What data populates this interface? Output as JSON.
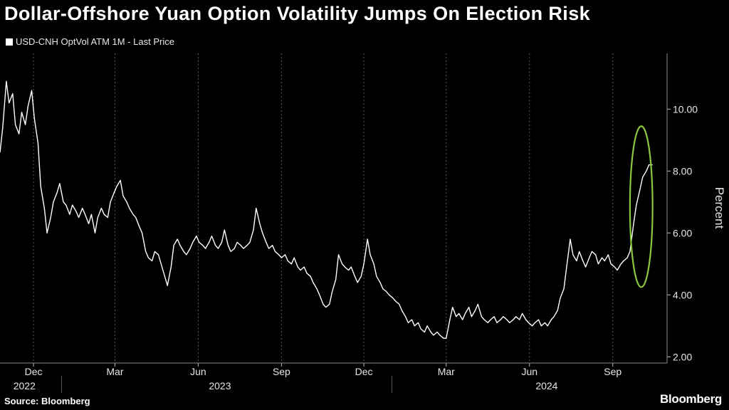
{
  "title": "Dollar-Offshore Yuan Option Volatility Jumps On Election Risk",
  "source": "Source: Bloomberg",
  "logo": "Bloomberg",
  "colors": {
    "background": "#000000",
    "line": "#ffffff",
    "grid": "#5a5a5a",
    "highlight": "#8dc63f"
  },
  "chart_data": {
    "type": "line",
    "ylabel": "Percent",
    "ylim": [
      1.8,
      11.8
    ],
    "yticks": [
      2.0,
      4.0,
      6.0,
      8.0,
      10.0
    ],
    "ytick_labels": [
      "2.00",
      "4.00",
      "6.00",
      "8.00",
      "10.00"
    ],
    "xlim": [
      "2022-10-25",
      "2024-10-31"
    ],
    "xticks": [
      {
        "label": "Dec",
        "date": "2022-12-01"
      },
      {
        "label": "Mar",
        "date": "2023-03-01"
      },
      {
        "label": "Jun",
        "date": "2023-06-01"
      },
      {
        "label": "Sep",
        "date": "2023-09-01"
      },
      {
        "label": "Dec",
        "date": "2023-12-01"
      },
      {
        "label": "Mar",
        "date": "2024-03-01"
      },
      {
        "label": "Jun",
        "date": "2024-06-01"
      },
      {
        "label": "Sep",
        "date": "2024-09-01"
      }
    ],
    "years": [
      {
        "label": "2022",
        "date": "2022-11-21"
      },
      {
        "label": "2023",
        "date": "2023-06-25"
      },
      {
        "label": "2024",
        "date": "2024-06-20"
      }
    ],
    "year_dividers": [
      "2023-01-01",
      "2024-01-01"
    ],
    "grid": "vertical-dashed",
    "legend_position": "top-left",
    "annotation": {
      "type": "ellipse",
      "color": "#8dc63f",
      "x_range": [
        "2024-09-20",
        "2024-10-15"
      ],
      "y_range": [
        4.25,
        9.45
      ]
    },
    "series": [
      {
        "name": "USD-CNH OptVol ATM 1M - Last Price",
        "points": [
          [
            "2022-10-25",
            8.6
          ],
          [
            "2022-10-28",
            9.4
          ],
          [
            "2022-11-01",
            10.9
          ],
          [
            "2022-11-04",
            10.2
          ],
          [
            "2022-11-08",
            10.5
          ],
          [
            "2022-11-11",
            9.5
          ],
          [
            "2022-11-15",
            9.2
          ],
          [
            "2022-11-18",
            9.9
          ],
          [
            "2022-11-22",
            9.5
          ],
          [
            "2022-11-25",
            10.1
          ],
          [
            "2022-11-29",
            10.6
          ],
          [
            "2022-12-02",
            9.7
          ],
          [
            "2022-12-06",
            8.9
          ],
          [
            "2022-12-09",
            7.5
          ],
          [
            "2022-12-13",
            6.8
          ],
          [
            "2022-12-16",
            6.0
          ],
          [
            "2022-12-20",
            6.5
          ],
          [
            "2022-12-23",
            7.0
          ],
          [
            "2022-12-27",
            7.3
          ],
          [
            "2022-12-30",
            7.6
          ],
          [
            "2023-01-03",
            7.0
          ],
          [
            "2023-01-06",
            6.9
          ],
          [
            "2023-01-10",
            6.6
          ],
          [
            "2023-01-13",
            6.9
          ],
          [
            "2023-01-17",
            6.7
          ],
          [
            "2023-01-20",
            6.5
          ],
          [
            "2023-01-24",
            6.8
          ],
          [
            "2023-01-27",
            6.6
          ],
          [
            "2023-01-31",
            6.3
          ],
          [
            "2023-02-03",
            6.6
          ],
          [
            "2023-02-07",
            6.0
          ],
          [
            "2023-02-10",
            6.5
          ],
          [
            "2023-02-14",
            6.8
          ],
          [
            "2023-02-17",
            6.6
          ],
          [
            "2023-02-21",
            6.5
          ],
          [
            "2023-02-24",
            7.0
          ],
          [
            "2023-02-28",
            7.3
          ],
          [
            "2023-03-03",
            7.5
          ],
          [
            "2023-03-07",
            7.7
          ],
          [
            "2023-03-10",
            7.2
          ],
          [
            "2023-03-14",
            7.0
          ],
          [
            "2023-03-17",
            6.8
          ],
          [
            "2023-03-21",
            6.6
          ],
          [
            "2023-03-24",
            6.5
          ],
          [
            "2023-03-28",
            6.2
          ],
          [
            "2023-03-31",
            6.0
          ],
          [
            "2023-04-04",
            5.4
          ],
          [
            "2023-04-07",
            5.2
          ],
          [
            "2023-04-11",
            5.1
          ],
          [
            "2023-04-14",
            5.4
          ],
          [
            "2023-04-18",
            5.3
          ],
          [
            "2023-04-21",
            5.0
          ],
          [
            "2023-04-25",
            4.6
          ],
          [
            "2023-04-28",
            4.3
          ],
          [
            "2023-05-02",
            4.9
          ],
          [
            "2023-05-05",
            5.6
          ],
          [
            "2023-05-09",
            5.8
          ],
          [
            "2023-05-12",
            5.6
          ],
          [
            "2023-05-16",
            5.4
          ],
          [
            "2023-05-19",
            5.3
          ],
          [
            "2023-05-23",
            5.5
          ],
          [
            "2023-05-26",
            5.7
          ],
          [
            "2023-05-30",
            5.9
          ],
          [
            "2023-06-02",
            5.7
          ],
          [
            "2023-06-06",
            5.6
          ],
          [
            "2023-06-09",
            5.5
          ],
          [
            "2023-06-13",
            5.7
          ],
          [
            "2023-06-16",
            5.9
          ],
          [
            "2023-06-20",
            5.6
          ],
          [
            "2023-06-23",
            5.5
          ],
          [
            "2023-06-27",
            5.7
          ],
          [
            "2023-06-30",
            6.1
          ],
          [
            "2023-07-04",
            5.6
          ],
          [
            "2023-07-07",
            5.4
          ],
          [
            "2023-07-11",
            5.5
          ],
          [
            "2023-07-14",
            5.7
          ],
          [
            "2023-07-18",
            5.6
          ],
          [
            "2023-07-21",
            5.5
          ],
          [
            "2023-07-25",
            5.6
          ],
          [
            "2023-07-28",
            5.7
          ],
          [
            "2023-08-01",
            6.1
          ],
          [
            "2023-08-04",
            6.8
          ],
          [
            "2023-08-08",
            6.3
          ],
          [
            "2023-08-11",
            6.0
          ],
          [
            "2023-08-15",
            5.7
          ],
          [
            "2023-08-18",
            5.5
          ],
          [
            "2023-08-22",
            5.6
          ],
          [
            "2023-08-25",
            5.4
          ],
          [
            "2023-08-29",
            5.3
          ],
          [
            "2023-09-01",
            5.2
          ],
          [
            "2023-09-05",
            5.3
          ],
          [
            "2023-09-08",
            5.1
          ],
          [
            "2023-09-12",
            5.0
          ],
          [
            "2023-09-15",
            5.2
          ],
          [
            "2023-09-19",
            4.9
          ],
          [
            "2023-09-22",
            4.8
          ],
          [
            "2023-09-26",
            4.9
          ],
          [
            "2023-09-29",
            4.7
          ],
          [
            "2023-10-03",
            4.6
          ],
          [
            "2023-10-06",
            4.4
          ],
          [
            "2023-10-10",
            4.2
          ],
          [
            "2023-10-13",
            4.0
          ],
          [
            "2023-10-17",
            3.7
          ],
          [
            "2023-10-20",
            3.6
          ],
          [
            "2023-10-24",
            3.7
          ],
          [
            "2023-10-27",
            4.1
          ],
          [
            "2023-10-31",
            4.5
          ],
          [
            "2023-11-03",
            5.3
          ],
          [
            "2023-11-07",
            5.0
          ],
          [
            "2023-11-10",
            4.9
          ],
          [
            "2023-11-14",
            4.8
          ],
          [
            "2023-11-17",
            4.9
          ],
          [
            "2023-11-21",
            4.6
          ],
          [
            "2023-11-24",
            4.4
          ],
          [
            "2023-11-28",
            4.6
          ],
          [
            "2023-12-01",
            5.0
          ],
          [
            "2023-12-05",
            5.8
          ],
          [
            "2023-12-08",
            5.3
          ],
          [
            "2023-12-12",
            5.0
          ],
          [
            "2023-12-15",
            4.6
          ],
          [
            "2023-12-19",
            4.4
          ],
          [
            "2023-12-22",
            4.2
          ],
          [
            "2023-12-26",
            4.1
          ],
          [
            "2023-12-29",
            4.0
          ],
          [
            "2024-01-02",
            3.9
          ],
          [
            "2024-01-05",
            3.8
          ],
          [
            "2024-01-09",
            3.7
          ],
          [
            "2024-01-12",
            3.5
          ],
          [
            "2024-01-16",
            3.3
          ],
          [
            "2024-01-19",
            3.1
          ],
          [
            "2024-01-23",
            3.2
          ],
          [
            "2024-01-26",
            3.0
          ],
          [
            "2024-01-30",
            3.1
          ],
          [
            "2024-02-02",
            2.9
          ],
          [
            "2024-02-06",
            2.8
          ],
          [
            "2024-02-09",
            3.0
          ],
          [
            "2024-02-13",
            2.8
          ],
          [
            "2024-02-16",
            2.7
          ],
          [
            "2024-02-20",
            2.8
          ],
          [
            "2024-02-23",
            2.7
          ],
          [
            "2024-02-27",
            2.6
          ],
          [
            "2024-03-01",
            2.6
          ],
          [
            "2024-03-05",
            3.2
          ],
          [
            "2024-03-08",
            3.6
          ],
          [
            "2024-03-12",
            3.3
          ],
          [
            "2024-03-15",
            3.4
          ],
          [
            "2024-03-19",
            3.2
          ],
          [
            "2024-03-22",
            3.4
          ],
          [
            "2024-03-26",
            3.6
          ],
          [
            "2024-03-29",
            3.3
          ],
          [
            "2024-04-02",
            3.5
          ],
          [
            "2024-04-05",
            3.7
          ],
          [
            "2024-04-09",
            3.3
          ],
          [
            "2024-04-12",
            3.2
          ],
          [
            "2024-04-16",
            3.1
          ],
          [
            "2024-04-19",
            3.2
          ],
          [
            "2024-04-23",
            3.3
          ],
          [
            "2024-04-26",
            3.1
          ],
          [
            "2024-04-30",
            3.2
          ],
          [
            "2024-05-03",
            3.3
          ],
          [
            "2024-05-07",
            3.2
          ],
          [
            "2024-05-10",
            3.1
          ],
          [
            "2024-05-14",
            3.2
          ],
          [
            "2024-05-17",
            3.3
          ],
          [
            "2024-05-21",
            3.2
          ],
          [
            "2024-05-24",
            3.4
          ],
          [
            "2024-05-28",
            3.2
          ],
          [
            "2024-05-31",
            3.1
          ],
          [
            "2024-06-04",
            3.0
          ],
          [
            "2024-06-07",
            3.1
          ],
          [
            "2024-06-11",
            3.2
          ],
          [
            "2024-06-14",
            3.0
          ],
          [
            "2024-06-18",
            3.1
          ],
          [
            "2024-06-21",
            3.0
          ],
          [
            "2024-06-25",
            3.2
          ],
          [
            "2024-06-28",
            3.3
          ],
          [
            "2024-07-02",
            3.5
          ],
          [
            "2024-07-05",
            3.9
          ],
          [
            "2024-07-09",
            4.2
          ],
          [
            "2024-07-12",
            4.9
          ],
          [
            "2024-07-16",
            5.8
          ],
          [
            "2024-07-19",
            5.3
          ],
          [
            "2024-07-23",
            5.1
          ],
          [
            "2024-07-26",
            5.4
          ],
          [
            "2024-07-30",
            5.1
          ],
          [
            "2024-08-02",
            4.9
          ],
          [
            "2024-08-06",
            5.2
          ],
          [
            "2024-08-09",
            5.4
          ],
          [
            "2024-08-13",
            5.3
          ],
          [
            "2024-08-16",
            5.0
          ],
          [
            "2024-08-20",
            5.2
          ],
          [
            "2024-08-23",
            5.1
          ],
          [
            "2024-08-27",
            5.3
          ],
          [
            "2024-08-30",
            5.0
          ],
          [
            "2024-09-03",
            4.9
          ],
          [
            "2024-09-06",
            4.8
          ],
          [
            "2024-09-10",
            5.0
          ],
          [
            "2024-09-13",
            5.1
          ],
          [
            "2024-09-17",
            5.2
          ],
          [
            "2024-09-20",
            5.4
          ],
          [
            "2024-09-24",
            6.3
          ],
          [
            "2024-09-27",
            6.9
          ],
          [
            "2024-10-01",
            7.4
          ],
          [
            "2024-10-04",
            7.8
          ],
          [
            "2024-10-08",
            8.0
          ],
          [
            "2024-10-11",
            8.2
          ],
          [
            "2024-10-15",
            8.2
          ]
        ]
      }
    ]
  }
}
